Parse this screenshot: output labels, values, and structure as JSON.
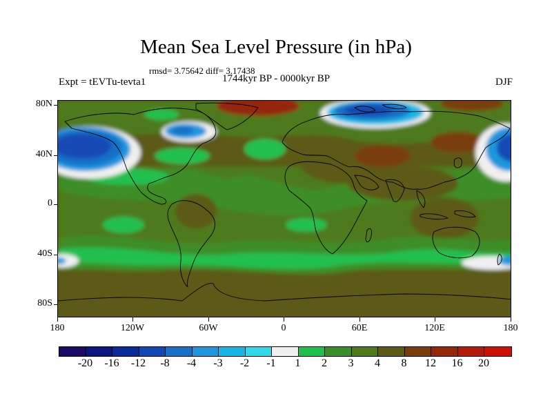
{
  "title": "Mean Sea Level Pressure (in hPa)",
  "stats": "rmsd= 3.75642 diff= 3.17438",
  "experiment": "Expt = tEVTu-tevta1",
  "period": "1744kyr BP - 0000kyr BP",
  "season": "DJF",
  "lat_labels": [
    "80N",
    "40N",
    "0",
    "40S",
    "80S"
  ],
  "lon_labels": [
    "180",
    "120W",
    "60W",
    "0",
    "60E",
    "120E",
    "180"
  ],
  "colorbar": {
    "labels": [
      "-20",
      "-16",
      "-12",
      "-8",
      "-4",
      "-3",
      "-2",
      "-1",
      "1",
      "2",
      "3",
      "4",
      "8",
      "12",
      "16",
      "20"
    ],
    "colors": [
      "#1a0a64",
      "#0a1680",
      "#0a2a9c",
      "#1248b4",
      "#1870c8",
      "#1e96dc",
      "#18b6e4",
      "#30d8e8",
      "#f0f0f0",
      "#20c050",
      "#3c8e28",
      "#4e7a1e",
      "#5c5a14",
      "#7a3e0a",
      "#94280a",
      "#b41a0a",
      "#cc1008"
    ]
  }
}
